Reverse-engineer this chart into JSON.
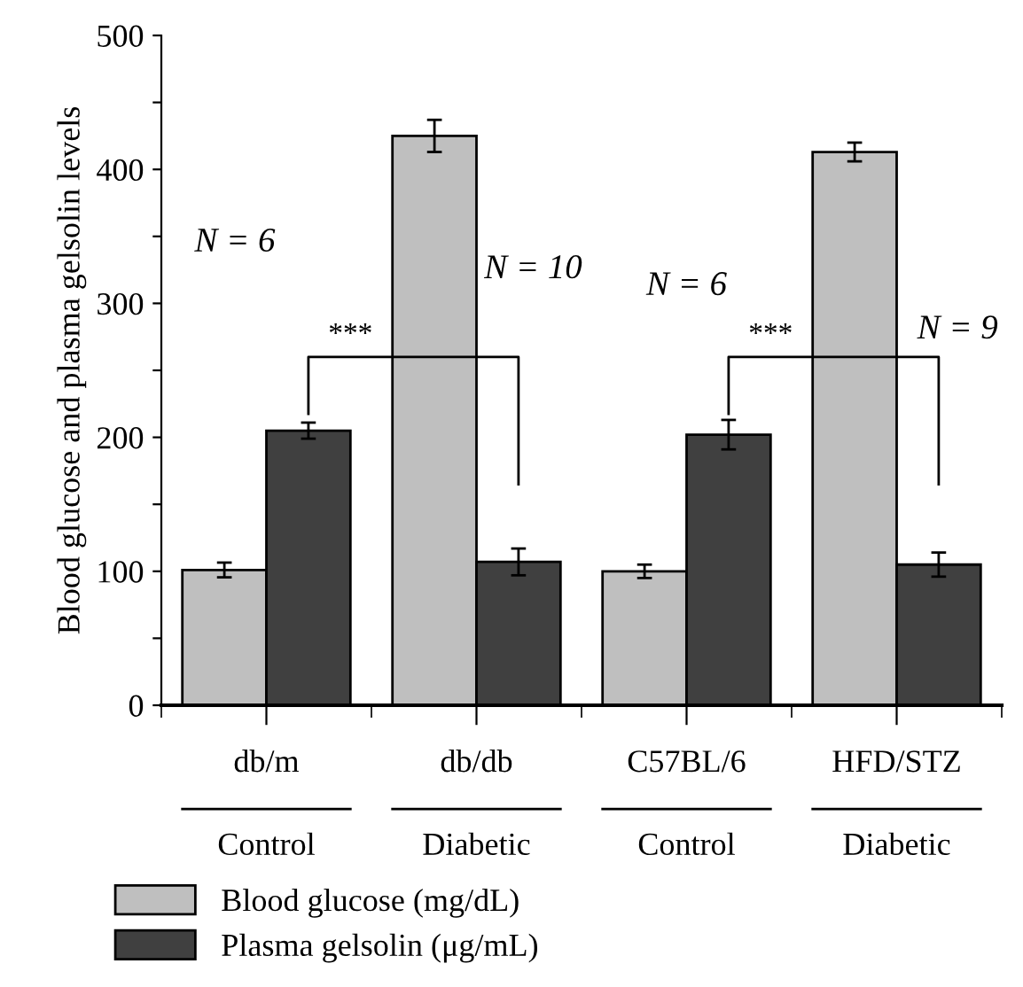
{
  "chart_data": {
    "type": "bar",
    "ylabel": "Blood glucose and plasma gelsolin levels",
    "categories": [
      "db/m",
      "db/db",
      "C57BL/6",
      "HFD/STZ"
    ],
    "series": [
      {
        "name": "Blood glucose (mg/dL)",
        "color": "#bfbfbf",
        "values": [
          101,
          425,
          100,
          413
        ],
        "errors": [
          5.5,
          12,
          5,
          7
        ]
      },
      {
        "name": "Plasma gelsolin (μg/mL)",
        "color": "#404040",
        "values": [
          205,
          107,
          202,
          105
        ],
        "errors": [
          6,
          10,
          11,
          9
        ]
      }
    ],
    "ylim": [
      0,
      500
    ],
    "yticks": [
      0,
      {
        "value": 50,
        "label": null
      },
      100,
      {
        "value": 150,
        "label": null
      },
      200,
      {
        "value": 250,
        "label": null
      },
      300,
      {
        "value": 350,
        "label": null
      },
      400,
      {
        "value": 450,
        "label": null
      },
      500
    ],
    "annotations": [
      "N = 6",
      "N = 10",
      "N = 6",
      "N = 9",
      "***",
      "***",
      "Control",
      "Diabetic",
      "Control",
      "Diabetic"
    ],
    "legend": "bottom left",
    "grid": false
  }
}
